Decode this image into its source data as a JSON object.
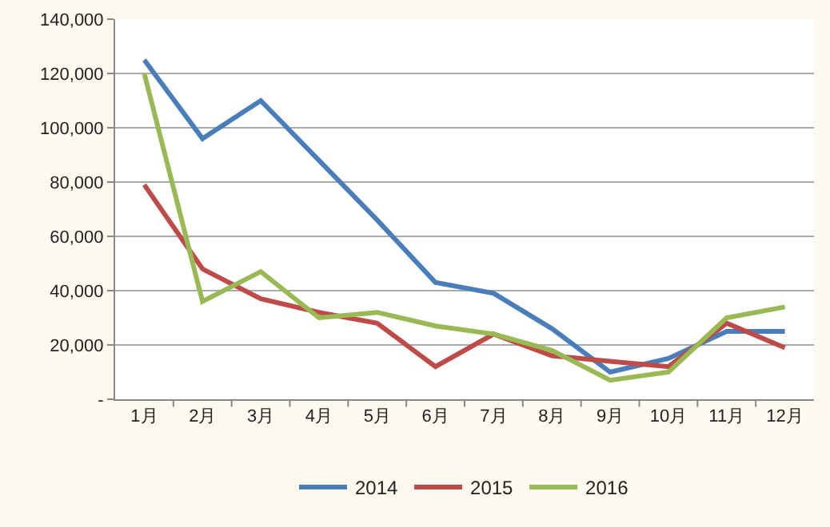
{
  "chart_data": {
    "type": "line",
    "categories": [
      "1月",
      "2月",
      "3月",
      "4月",
      "5月",
      "6月",
      "7月",
      "8月",
      "9月",
      "10月",
      "11月",
      "12月"
    ],
    "series": [
      {
        "name": "2014",
        "color": "#4a7ebb",
        "values": [
          125000,
          96000,
          110000,
          88000,
          66000,
          43000,
          39000,
          26000,
          10000,
          15000,
          25000,
          25000
        ]
      },
      {
        "name": "2015",
        "color": "#be4b48",
        "values": [
          79000,
          48000,
          37000,
          32000,
          28000,
          12000,
          24000,
          16000,
          14000,
          12000,
          28000,
          19000
        ]
      },
      {
        "name": "2016",
        "color": "#98b954",
        "values": [
          120000,
          36000,
          47000,
          30000,
          32000,
          27000,
          24000,
          18000,
          7000,
          10000,
          30000,
          34000
        ]
      }
    ],
    "ylim": [
      0,
      140000
    ],
    "yticks": [
      {
        "value": 0,
        "label": "-"
      },
      {
        "value": 20000,
        "label": "20,000"
      },
      {
        "value": 40000,
        "label": "40,000"
      },
      {
        "value": 60000,
        "label": "60,000"
      },
      {
        "value": 80000,
        "label": "80,000"
      },
      {
        "value": 100000,
        "label": "100,000"
      },
      {
        "value": 120000,
        "label": "120,000"
      },
      {
        "value": 140000,
        "label": "140,000"
      }
    ],
    "grid": "y",
    "legend": "bottom",
    "marker": "none",
    "line_style": "solid"
  }
}
